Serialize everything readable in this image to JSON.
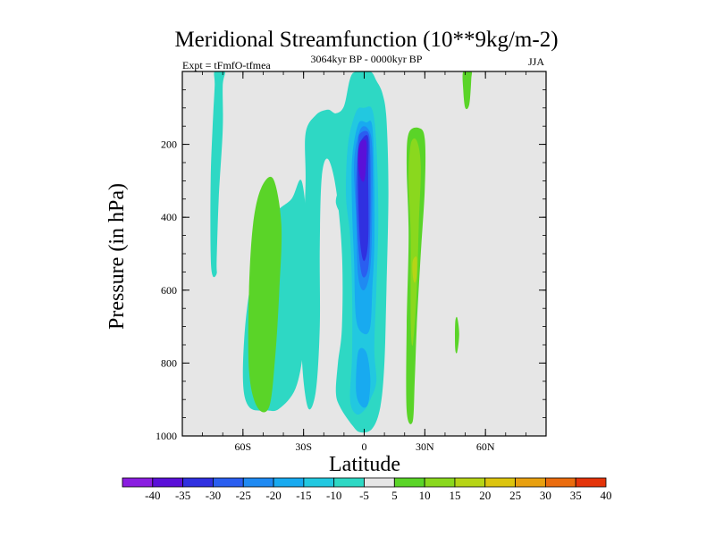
{
  "chart_data": {
    "type": "filled-contour",
    "title": "Meridional Streamfunction (10**9kg/m-2)",
    "subtitle_left": "Expt = tFmfO-tfmea",
    "subtitle_center": "3064kyr BP - 0000kyr BP",
    "subtitle_right": "JJA",
    "xlabel": "Latitude",
    "ylabel": "Pressure (in hPa)",
    "xlim": [
      -90,
      90
    ],
    "ylim": [
      0,
      1000
    ],
    "y_inverted": true,
    "x_ticks": [
      {
        "value": -60,
        "label": "60S"
      },
      {
        "value": -30,
        "label": "30S"
      },
      {
        "value": 0,
        "label": "0"
      },
      {
        "value": 30,
        "label": "30N"
      },
      {
        "value": 60,
        "label": "60N"
      }
    ],
    "y_ticks": [
      {
        "value": 200,
        "label": "200"
      },
      {
        "value": 400,
        "label": "400"
      },
      {
        "value": 600,
        "label": "600"
      },
      {
        "value": 800,
        "label": "800"
      },
      {
        "value": 1000,
        "label": "1000"
      }
    ],
    "background_color": "#e6e6e6",
    "colorbar": {
      "labels": [
        "-40",
        "-35",
        "-30",
        "-25",
        "-20",
        "-15",
        "-10",
        "-5",
        "5",
        "10",
        "15",
        "20",
        "25",
        "30",
        "35",
        "40"
      ],
      "colors": [
        "#8a1ee0",
        "#5a10d8",
        "#3030e0",
        "#2a5ef0",
        "#1f8af2",
        "#18aaf0",
        "#22c8e0",
        "#2ed8c4",
        "#e6e6e6",
        "#5ad428",
        "#8ad81e",
        "#b6d416",
        "#dcc40e",
        "#e8a010",
        "#ea6c0e",
        "#e4340a"
      ]
    },
    "regions": [
      {
        "level": -5,
        "color": "#2ed8c4",
        "points": [
          [
            -74,
            0
          ],
          [
            -69,
            0
          ],
          [
            -70,
            40
          ],
          [
            -70,
            160
          ],
          [
            -72,
            350
          ],
          [
            -73,
            520
          ],
          [
            -73,
            555
          ],
          [
            -75,
            560
          ],
          [
            -76,
            500
          ],
          [
            -76,
            300
          ],
          [
            -75,
            150
          ],
          [
            -74,
            40
          ]
        ]
      },
      {
        "level": -5,
        "color": "#2ed8c4",
        "points": [
          [
            -36,
            350
          ],
          [
            -31,
            300
          ],
          [
            -28,
            450
          ],
          [
            -28,
            600
          ],
          [
            -30,
            760
          ],
          [
            -34,
            870
          ],
          [
            -42,
            925
          ],
          [
            -48,
            930
          ],
          [
            -57,
            920
          ],
          [
            -60,
            840
          ],
          [
            -58,
            650
          ],
          [
            -52,
            480
          ],
          [
            -44,
            390
          ]
        ]
      },
      {
        "level": -5,
        "color": "#2ed8c4",
        "points": [
          [
            -29,
            170
          ],
          [
            -24,
            120
          ],
          [
            -18,
            105
          ],
          [
            -14,
            115
          ],
          [
            -10,
            95
          ],
          [
            -7,
            20
          ],
          [
            -4,
            0
          ],
          [
            3,
            0
          ],
          [
            6,
            25
          ],
          [
            9,
            60
          ],
          [
            11,
            130
          ],
          [
            12,
            330
          ],
          [
            11,
            600
          ],
          [
            10,
            800
          ],
          [
            8,
            920
          ],
          [
            4,
            980
          ],
          [
            -2,
            990
          ],
          [
            -6,
            970
          ],
          [
            -12,
            920
          ],
          [
            -14,
            880
          ],
          [
            -13,
            800
          ],
          [
            -11,
            700
          ],
          [
            -11,
            500
          ],
          [
            -14,
            320
          ],
          [
            -18,
            240
          ],
          [
            -21,
            290
          ],
          [
            -22,
            480
          ],
          [
            -22,
            700
          ],
          [
            -24,
            880
          ],
          [
            -28,
            920
          ],
          [
            -31,
            760
          ],
          [
            -30,
            470
          ],
          [
            -29,
            300
          ]
        ]
      },
      {
        "level": -10,
        "color": "#22c8e0",
        "points": [
          [
            -4,
            110
          ],
          [
            0,
            100
          ],
          [
            4,
            105
          ],
          [
            6,
            200
          ],
          [
            7,
            400
          ],
          [
            6,
            600
          ],
          [
            5,
            760
          ],
          [
            6,
            850
          ],
          [
            3,
            900
          ],
          [
            0,
            930
          ],
          [
            -4,
            940
          ],
          [
            -7,
            900
          ],
          [
            -6,
            780
          ],
          [
            -6,
            600
          ],
          [
            -7,
            450
          ],
          [
            -9,
            340
          ],
          [
            -8,
            200
          ]
        ]
      },
      {
        "level": -15,
        "color": "#18aaf0",
        "points": [
          [
            -3,
            145
          ],
          [
            1,
            140
          ],
          [
            4,
            150
          ],
          [
            5,
            300
          ],
          [
            5,
            480
          ],
          [
            4,
            600
          ],
          [
            3,
            700
          ],
          [
            0,
            720
          ],
          [
            -4,
            680
          ],
          [
            -5,
            520
          ],
          [
            -6,
            380
          ],
          [
            -6,
            240
          ]
        ]
      },
      {
        "level": -15,
        "color": "#18aaf0",
        "points": [
          [
            -3,
            770
          ],
          [
            1,
            770
          ],
          [
            3,
            840
          ],
          [
            2,
            910
          ],
          [
            -1,
            920
          ],
          [
            -4,
            880
          ]
        ]
      },
      {
        "level": -20,
        "color": "#1f8af2",
        "points": [
          [
            -2,
            160
          ],
          [
            2,
            158
          ],
          [
            4,
            210
          ],
          [
            4,
            380
          ],
          [
            3,
            540
          ],
          [
            0,
            600
          ],
          [
            -3,
            560
          ],
          [
            -4,
            400
          ],
          [
            -5,
            250
          ]
        ]
      },
      {
        "level": -25,
        "color": "#2a5ef0",
        "points": [
          [
            -2,
            170
          ],
          [
            2,
            168
          ],
          [
            3,
            230
          ],
          [
            3,
            420
          ],
          [
            2,
            540
          ],
          [
            -1,
            560
          ],
          [
            -3,
            470
          ],
          [
            -4,
            320
          ],
          [
            -3,
            200
          ]
        ]
      },
      {
        "level": -30,
        "color": "#3030e0",
        "points": [
          [
            -1,
            185
          ],
          [
            2,
            182
          ],
          [
            2,
            280
          ],
          [
            2,
            460
          ],
          [
            0,
            520
          ],
          [
            -2,
            470
          ],
          [
            -3,
            330
          ],
          [
            -3,
            220
          ]
        ]
      },
      {
        "level": -35,
        "color": "#5a10d8",
        "points": [
          [
            -2,
            195
          ],
          [
            1,
            192
          ],
          [
            1,
            250
          ],
          [
            0,
            300
          ],
          [
            -2,
            290
          ],
          [
            -3,
            240
          ]
        ]
      },
      {
        "level": -5,
        "color": "#2ed8c4",
        "points": [
          [
            -13,
            335
          ],
          [
            -10,
            340
          ],
          [
            -10,
            370
          ],
          [
            -12,
            385
          ],
          [
            -14,
            360
          ]
        ]
      },
      {
        "level": 5,
        "color": "#5ad428",
        "points": [
          [
            -51,
            320
          ],
          [
            -45,
            295
          ],
          [
            -41,
            420
          ],
          [
            -42,
            600
          ],
          [
            -44,
            780
          ],
          [
            -47,
            920
          ],
          [
            -53,
            920
          ],
          [
            -57,
            820
          ],
          [
            -57,
            600
          ],
          [
            -55,
            420
          ]
        ]
      },
      {
        "level": 5,
        "color": "#5ad428",
        "points": [
          [
            22,
            170
          ],
          [
            27,
            155
          ],
          [
            30,
            185
          ],
          [
            30,
            320
          ],
          [
            28,
            500
          ],
          [
            26,
            700
          ],
          [
            25,
            850
          ],
          [
            24,
            960
          ],
          [
            21,
            930
          ],
          [
            21,
            700
          ],
          [
            22,
            450
          ],
          [
            21,
            260
          ]
        ]
      },
      {
        "level": 10,
        "color": "#8ad81e",
        "points": [
          [
            23,
            200
          ],
          [
            26,
            190
          ],
          [
            28,
            260
          ],
          [
            27,
            420
          ],
          [
            26,
            600
          ],
          [
            24,
            750
          ],
          [
            23,
            680
          ],
          [
            23,
            450
          ],
          [
            22,
            300
          ]
        ]
      },
      {
        "level": 15,
        "color": "#b6d416",
        "points": [
          [
            24,
            520
          ],
          [
            26,
            510
          ],
          [
            26,
            560
          ],
          [
            25,
            580
          ],
          [
            24,
            560
          ]
        ]
      },
      {
        "level": 5,
        "color": "#5ad428",
        "points": [
          [
            45,
            690
          ],
          [
            46,
            675
          ],
          [
            47,
            720
          ],
          [
            46,
            770
          ],
          [
            45,
            760
          ]
        ]
      },
      {
        "level": 5,
        "color": "#5ad428",
        "points": [
          [
            49,
            0
          ],
          [
            53,
            0
          ],
          [
            53,
            20
          ],
          [
            52,
            90
          ],
          [
            50,
            100
          ],
          [
            49,
            50
          ]
        ]
      }
    ]
  }
}
